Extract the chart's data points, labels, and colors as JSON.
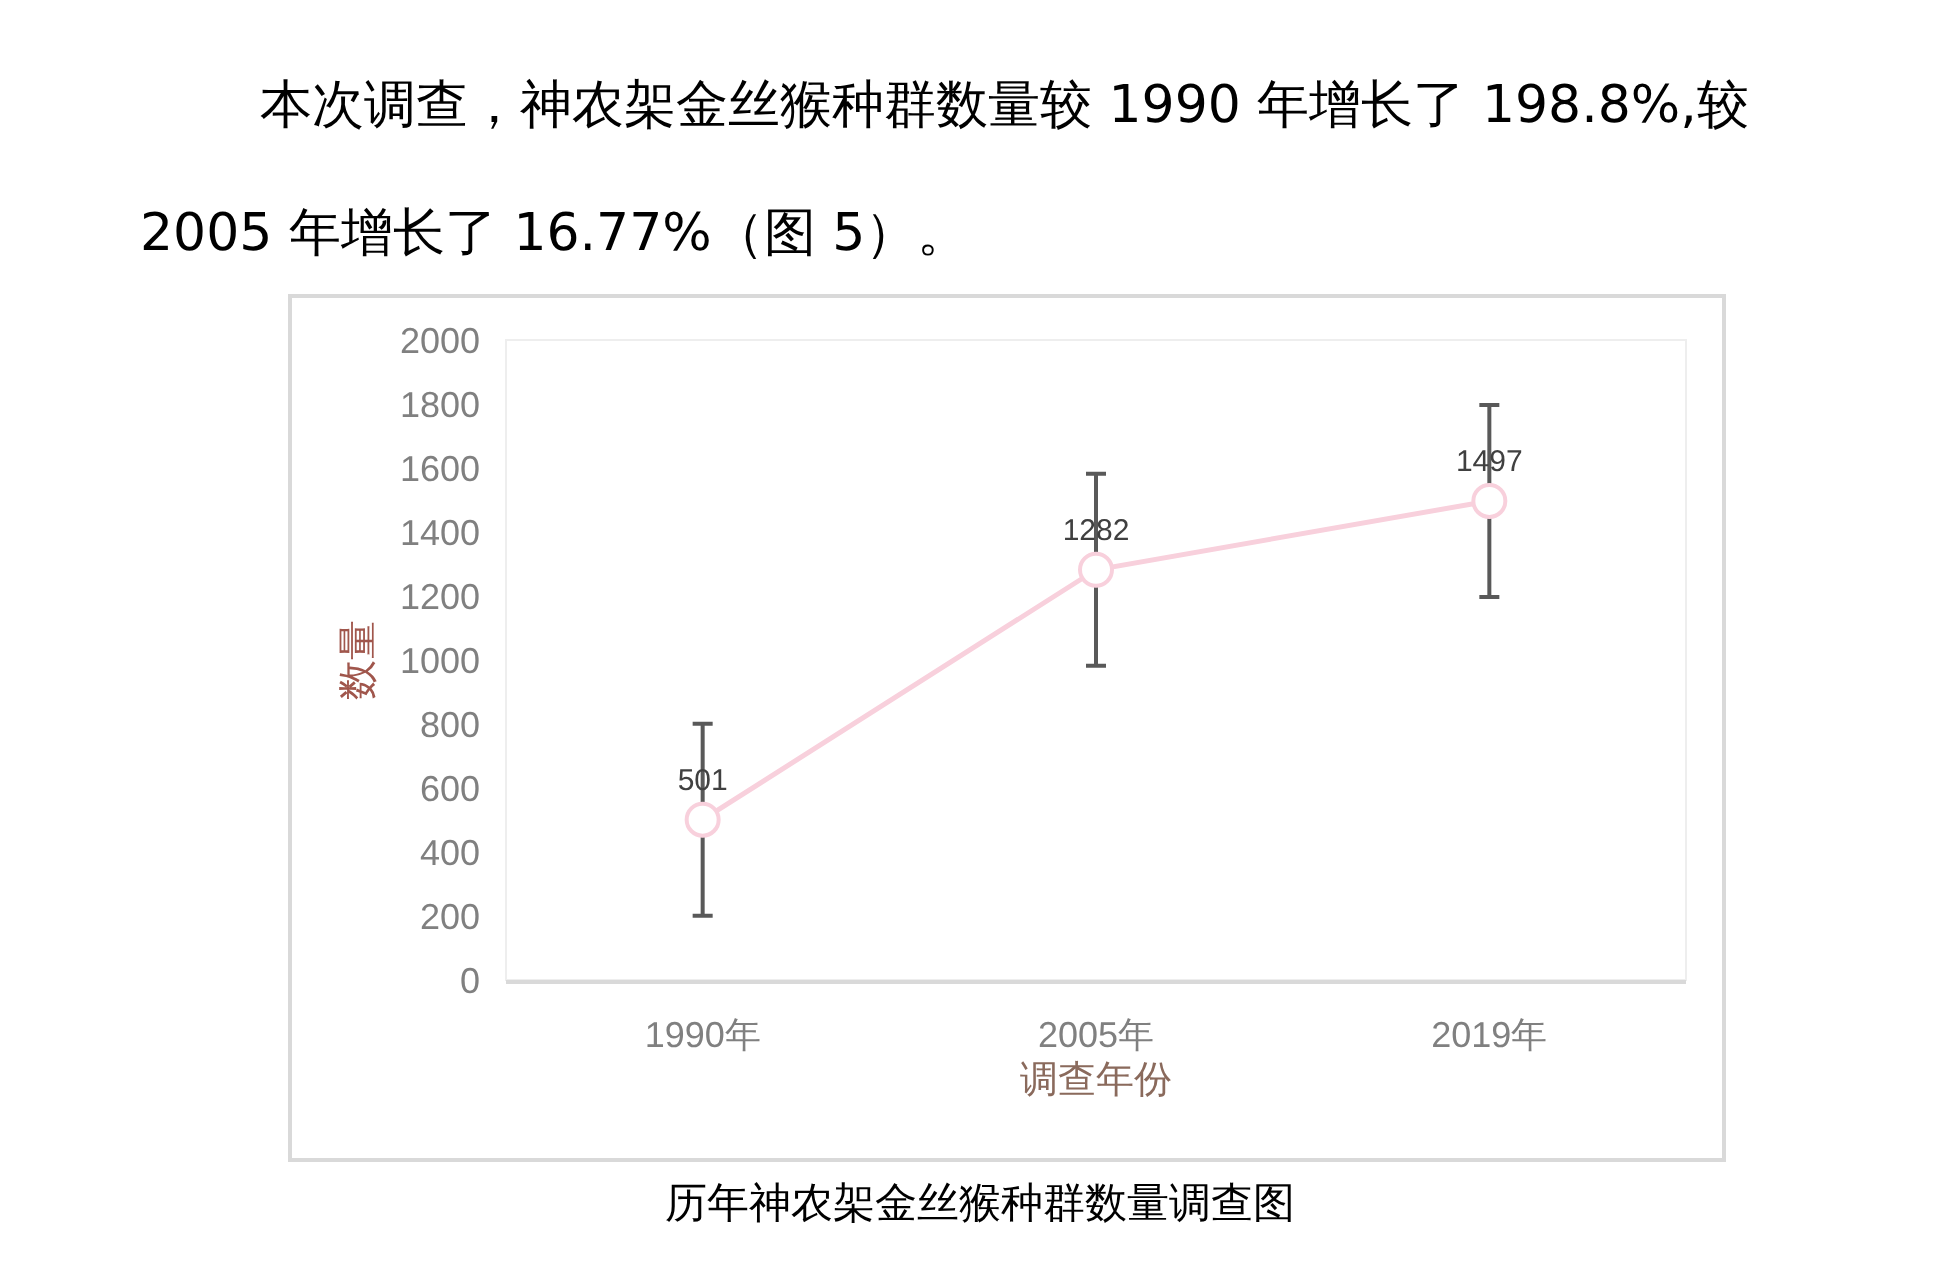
{
  "chart_data": {
    "type": "line",
    "title": "历年神农架金丝猴种群数量调查图",
    "xlabel": "调查年份",
    "ylabel": "数量",
    "annotations": [
      "本次调查，神农架金丝猴种群数量较 1990 年增长了 198.8%,较\n2005 年增长了 16.77%（图 5）。"
    ],
    "categories": [
      "1990年",
      "2005年",
      "2019年"
    ],
    "series": [
      {
        "color": "#f8d0dc",
        "values": [
          501,
          1282,
          1497
        ],
        "errors": [
          300,
          300,
          300
        ]
      }
    ],
    "ylim": [
      0,
      2000
    ],
    "yticks": [
      0,
      200,
      400,
      600,
      800,
      1000,
      1200,
      1400,
      1600,
      1800,
      2000
    ],
    "data_labels": true,
    "marker": "circle",
    "line_style": "solid"
  }
}
